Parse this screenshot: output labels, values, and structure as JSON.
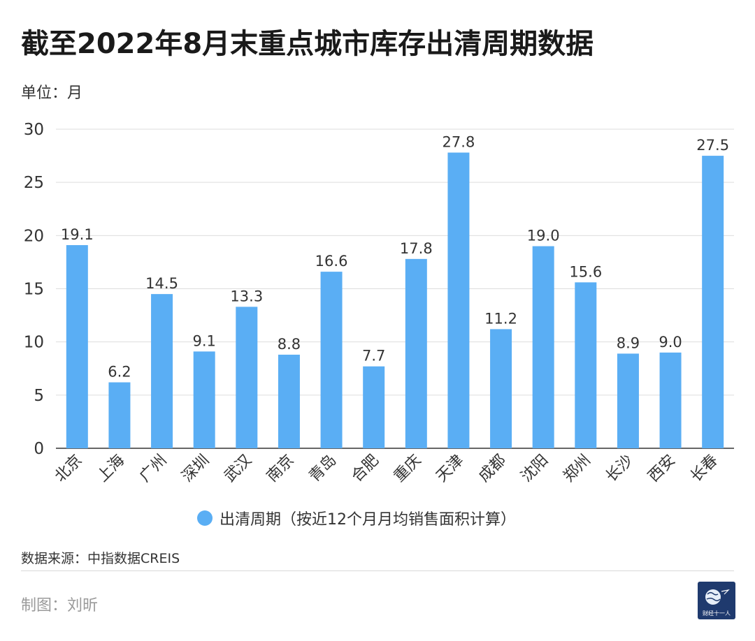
{
  "title": "截至2022年8月末重点城市库存出清周期数据",
  "unit_label": "单位：月",
  "source": "数据来源：中指数据CREIS",
  "author": "制图：刘昕",
  "logo": {
    "text": "财经十一人",
    "icon": "globe-icon"
  },
  "colors": {
    "bar": "#5aaef4",
    "grid": "#dddddd",
    "axis": "#333333",
    "logo_bg": "#1f3a6e"
  },
  "chart_data": {
    "type": "bar",
    "title": "截至2022年8月末重点城市库存出清周期数据",
    "xlabel": "",
    "ylabel": "单位：月",
    "ylim": [
      0,
      30
    ],
    "yticks": [
      0,
      5,
      10,
      15,
      20,
      25,
      30
    ],
    "grid": true,
    "legend_position": "bottom",
    "categories": [
      "北京",
      "上海",
      "广州",
      "深圳",
      "武汉",
      "南京",
      "青岛",
      "合肥",
      "重庆",
      "天津",
      "成都",
      "沈阳",
      "郑州",
      "长沙",
      "西安",
      "长春"
    ],
    "series": [
      {
        "name": "出清周期（按近12个月月均销售面积计算）",
        "values": [
          19.1,
          6.2,
          14.5,
          9.1,
          13.3,
          8.8,
          16.6,
          7.7,
          17.8,
          27.8,
          11.2,
          19.0,
          15.6,
          8.9,
          9.0,
          27.5
        ],
        "labels": [
          "19.1",
          "6.2",
          "14.5",
          "9.1",
          "13.3",
          "8.8",
          "16.6",
          "7.7",
          "17.8",
          "27.8",
          "11.2",
          "19.0",
          "15.6",
          "8.9",
          "9.0",
          "27.5"
        ]
      }
    ]
  }
}
